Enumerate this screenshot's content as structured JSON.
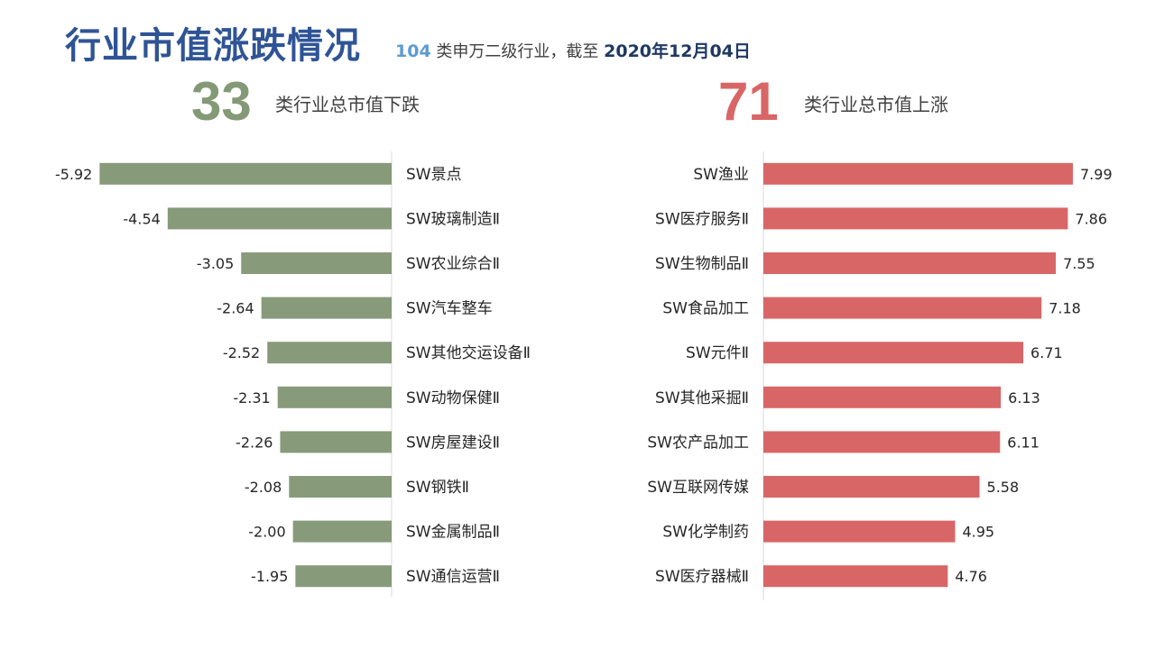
{
  "header": {
    "title": "行业市值涨跌情况",
    "count": "104",
    "subtitle_mid": " 类申万二级行业，截至 ",
    "date": "2020年12月04日"
  },
  "summary": {
    "down_count": "33",
    "down_label": "类行业总市值下跌",
    "up_count": "71",
    "up_label": "类行业总市值上涨"
  },
  "colors": {
    "down": "#879a7a",
    "up": "#d96666",
    "axis": "#d9d9d9",
    "title": "#2f5496"
  },
  "chart_data": [
    {
      "type": "bar",
      "orientation": "horizontal",
      "categories": [
        "SW景点",
        "SW玻璃制造Ⅱ",
        "SW农业综合Ⅱ",
        "SW汽车整车",
        "SW其他交运设备Ⅱ",
        "SW动物保健Ⅱ",
        "SW房屋建设Ⅱ",
        "SW钢铁Ⅱ",
        "SW金属制品Ⅱ",
        "SW通信运营Ⅱ"
      ],
      "values": [
        -5.92,
        -4.54,
        -3.05,
        -2.64,
        -2.52,
        -2.31,
        -2.26,
        -2.08,
        -2.0,
        -1.95
      ],
      "value_labels": [
        "-5.92",
        "-4.54",
        "-3.05",
        "-2.64",
        "-2.52",
        "-2.31",
        "-2.26",
        "-2.08",
        "-2.00",
        "-1.95"
      ],
      "xlim": [
        -6,
        0
      ]
    },
    {
      "type": "bar",
      "orientation": "horizontal",
      "categories": [
        "SW渔业",
        "SW医疗服务Ⅱ",
        "SW生物制品Ⅱ",
        "SW食品加工",
        "SW元件Ⅱ",
        "SW其他采掘Ⅱ",
        "SW农产品加工",
        "SW互联网传媒",
        "SW化学制药",
        "SW医疗器械Ⅱ"
      ],
      "values": [
        7.99,
        7.86,
        7.55,
        7.18,
        6.71,
        6.13,
        6.11,
        5.58,
        4.95,
        4.76
      ],
      "value_labels": [
        "7.99",
        "7.86",
        "7.55",
        "7.18",
        "6.71",
        "6.13",
        "6.11",
        "5.58",
        "4.95",
        "4.76"
      ],
      "xlim": [
        0,
        8
      ]
    }
  ]
}
